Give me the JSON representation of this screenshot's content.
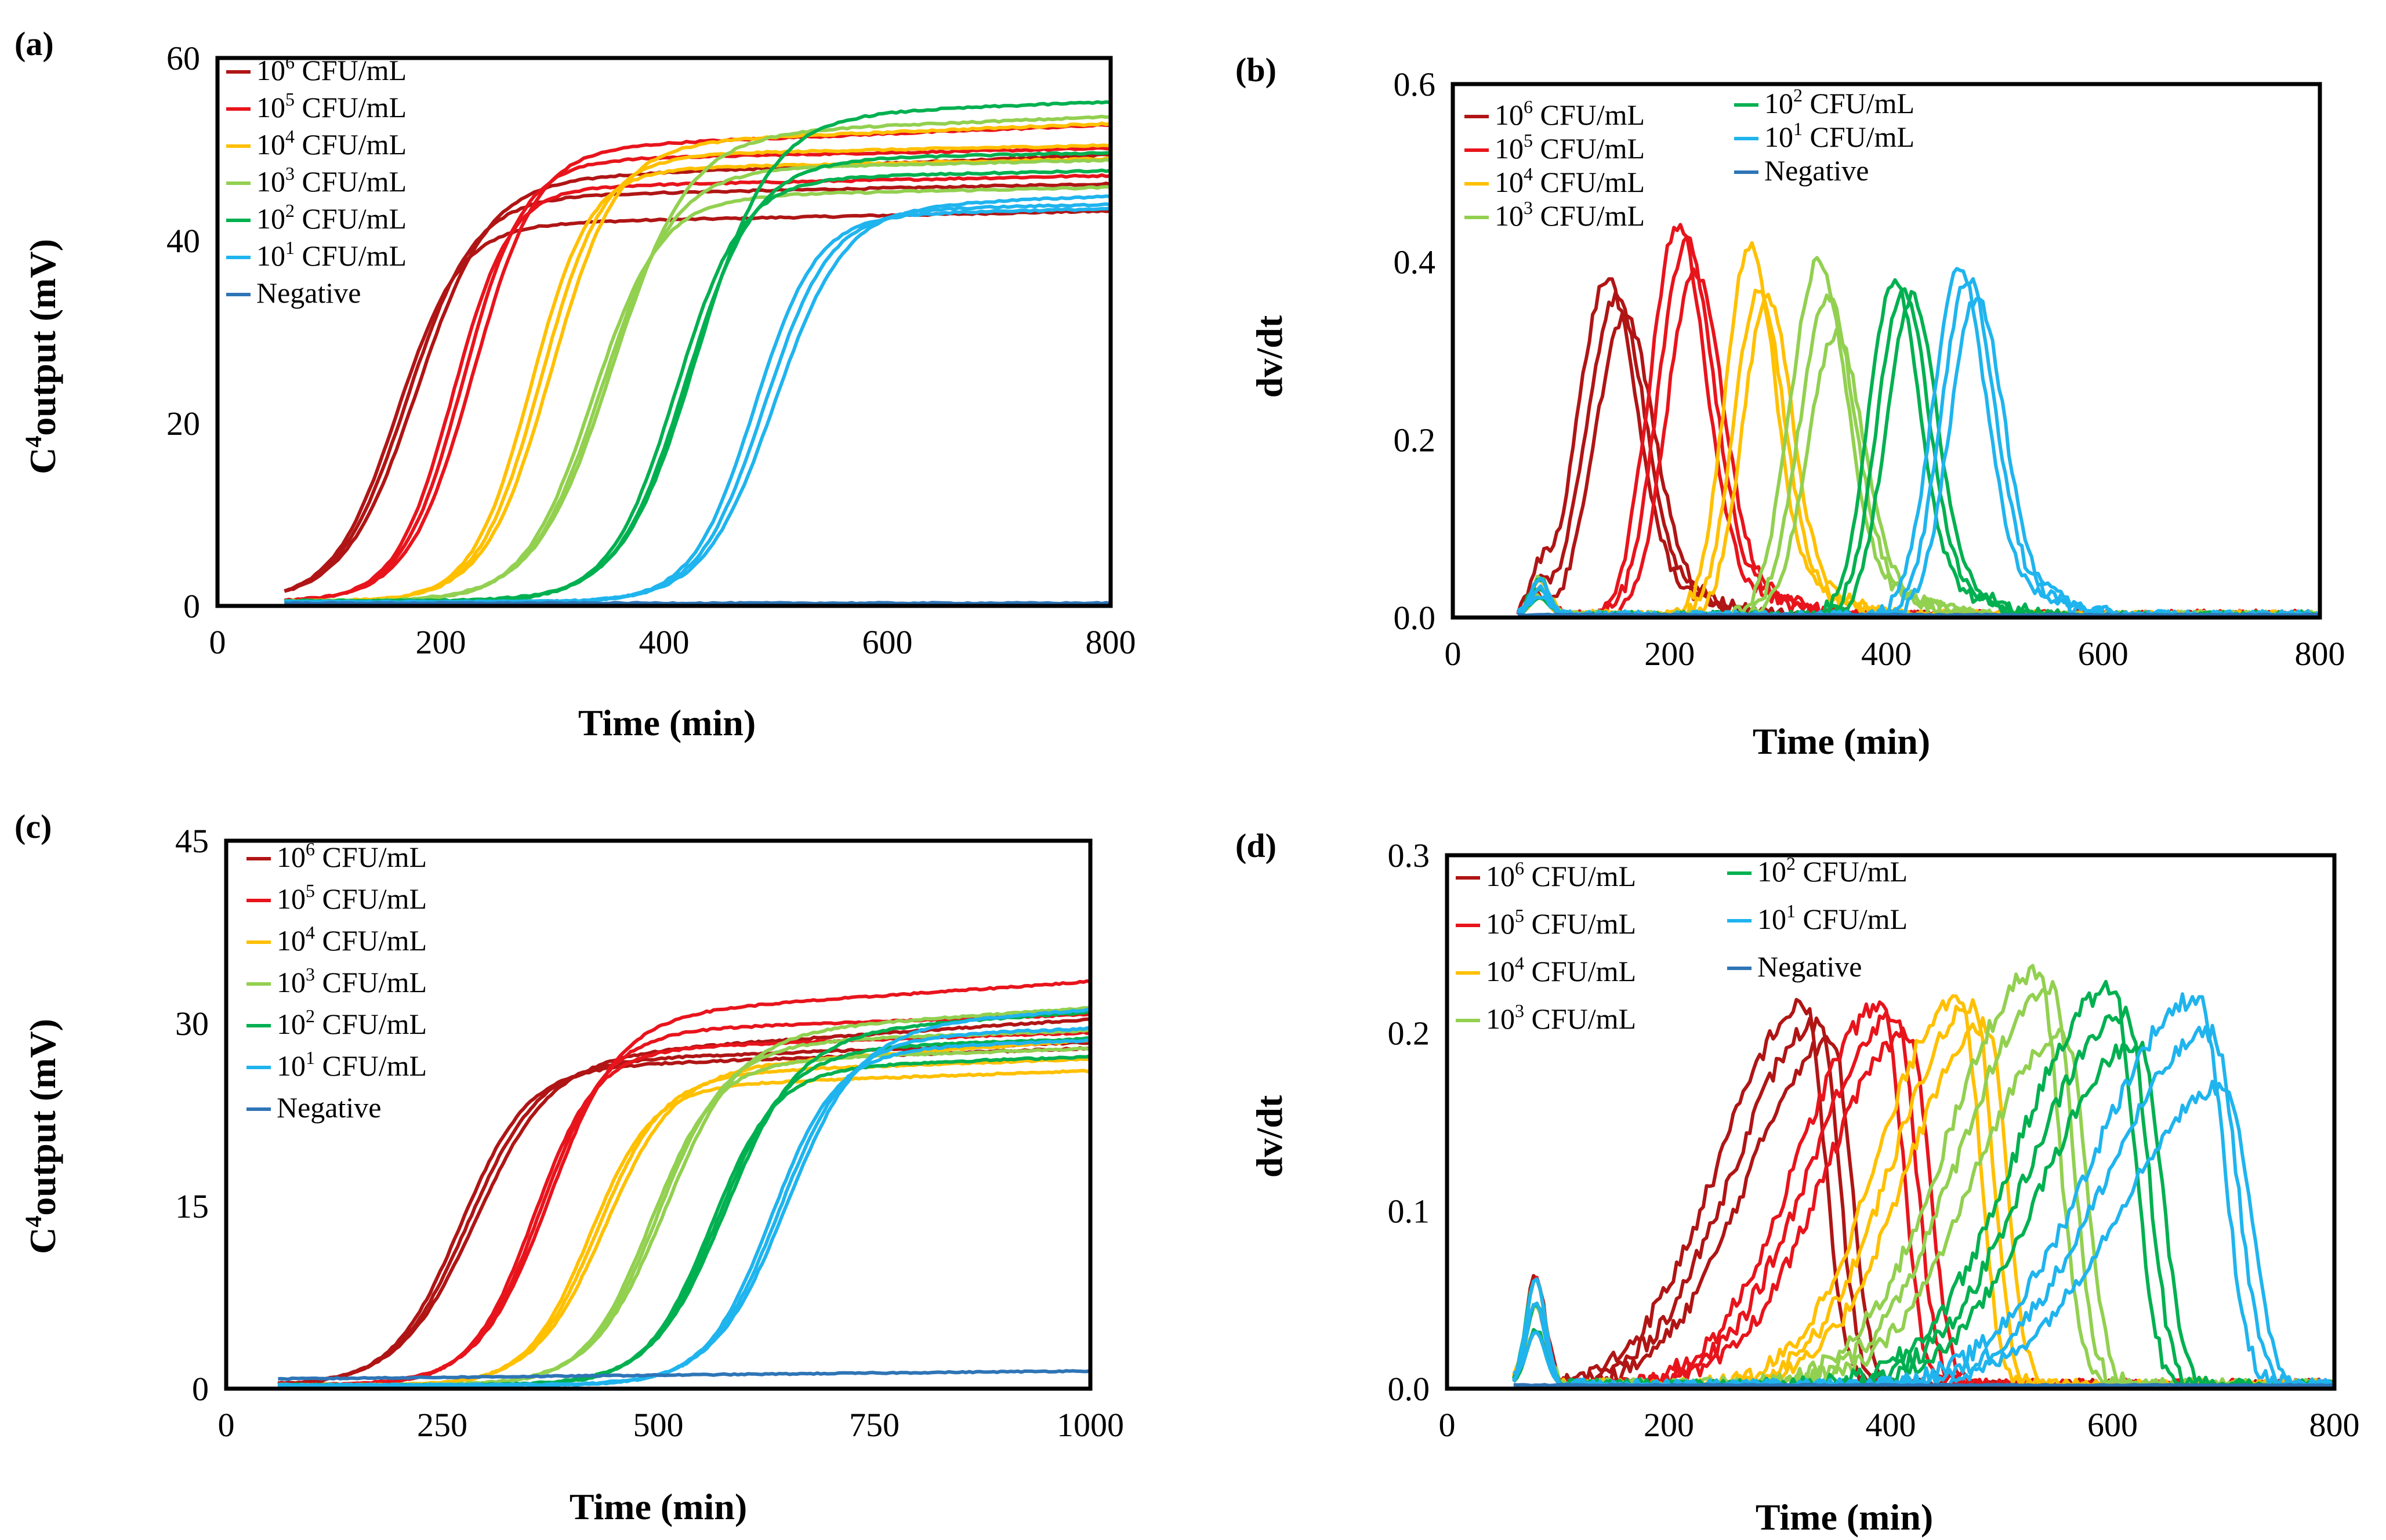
{
  "figure": {
    "legend_entries": [
      {
        "base": "10",
        "exp": "6",
        "unit": " CFU/mL"
      },
      {
        "base": "10",
        "exp": "5",
        "unit": " CFU/mL"
      },
      {
        "base": "10",
        "exp": "4",
        "unit": " CFU/mL"
      },
      {
        "base": "10",
        "exp": "3",
        "unit": " CFU/mL"
      },
      {
        "base": "10",
        "exp": "2",
        "unit": " CFU/mL"
      },
      {
        "base": "10",
        "exp": "1",
        "unit": " CFU/mL"
      },
      {
        "base": "Negative",
        "exp": "",
        "unit": ""
      }
    ],
    "colors": {
      "1e6": "#b01515",
      "1e5": "#e8141c",
      "1e4": "#ffc000",
      "1e3": "#92d050",
      "1e2": "#00b050",
      "1e1": "#1fb4ee",
      "negative": "#2e75b6"
    }
  },
  "chart_data": [
    {
      "id": "a",
      "panel_label": "(a)",
      "type": "line",
      "kind": "sigmoid",
      "xlabel": "Time (min)",
      "ylabel_main": "C",
      "ylabel_sup": "4",
      "ylabel_rest": "output (mV)",
      "xlim": [
        0,
        800
      ],
      "ylim": [
        0,
        60
      ],
      "xticks": [
        "0",
        "200",
        "400",
        "600",
        "800"
      ],
      "yticks": [
        "0",
        "20",
        "40",
        "60"
      ],
      "x_start": 60,
      "series": [
        {
          "name": "10^6 CFU/mL",
          "color": "1e6",
          "mid": 170,
          "k": 0.033,
          "plateaus": [
            42,
            45,
            47
          ]
        },
        {
          "name": "10^5 CFU/mL",
          "color": "1e5",
          "mid": 220,
          "k": 0.037,
          "plateaus": [
            46,
            49,
            50.5
          ]
        },
        {
          "name": "10^4 CFU/mL",
          "color": "1e4",
          "mid": 290,
          "k": 0.036,
          "plateaus": [
            48,
            49.5,
            51
          ]
        },
        {
          "name": "10^3 CFU/mL",
          "color": "1e3",
          "mid": 345,
          "k": 0.031,
          "plateaus": [
            45,
            48,
            52
          ]
        },
        {
          "name": "10^2 CFU/mL",
          "color": "1e2",
          "mid": 420,
          "k": 0.032,
          "plateaus": [
            47,
            49,
            54
          ]
        },
        {
          "name": "10^1 CFU/mL",
          "color": "1e1",
          "mid": 490,
          "k": 0.034,
          "plateaus": [
            43,
            43.5,
            44
          ]
        },
        {
          "name": "Negative",
          "color": "negative",
          "flat": 0.3
        }
      ]
    },
    {
      "id": "b",
      "panel_label": "(b)",
      "type": "line",
      "kind": "peak",
      "xlabel": "Time (min)",
      "ylabel_main": "dv/dt",
      "xlim": [
        0,
        800
      ],
      "ylim": [
        0,
        0.6
      ],
      "xticks": [
        "0",
        "200",
        "400",
        "600",
        "800"
      ],
      "yticks": [
        "0.0",
        "0.2",
        "0.4",
        "0.6"
      ],
      "x_start": 60,
      "series": [
        {
          "name": "10^6 CFU/mL",
          "color": "1e6",
          "peak_x": 150,
          "peaks": [
            0.37,
            0.35,
            0.33
          ],
          "w": 38
        },
        {
          "name": "10^5 CFU/mL",
          "color": "1e5",
          "peak_x": 215,
          "peaks": [
            0.43,
            0.41,
            0.38
          ],
          "w": 36
        },
        {
          "name": "10^4 CFU/mL",
          "color": "1e4",
          "peak_x": 282,
          "peaks": [
            0.41,
            0.36,
            0.35
          ],
          "w": 32
        },
        {
          "name": "10^3 CFU/mL",
          "color": "1e3",
          "peak_x": 345,
          "peaks": [
            0.39,
            0.35,
            0.31
          ],
          "w": 36
        },
        {
          "name": "10^2 CFU/mL",
          "color": "1e2",
          "peak_x": 415,
          "peaks": [
            0.37,
            0.36,
            0.35
          ],
          "w": 33
        },
        {
          "name": "10^1 CFU/mL",
          "color": "1e1",
          "peak_x": 475,
          "peaks": [
            0.38,
            0.37,
            0.35
          ],
          "w": 35
        },
        {
          "name": "Negative",
          "color": "negative",
          "flat": 0.003
        }
      ]
    },
    {
      "id": "c",
      "panel_label": "(c)",
      "type": "line",
      "kind": "sigmoid",
      "xlabel": "Time (min)",
      "ylabel_main": "C",
      "ylabel_sup": "4",
      "ylabel_rest": "output (mV)",
      "xlim": [
        0,
        1000
      ],
      "ylim": [
        0,
        45
      ],
      "xticks": [
        "0",
        "250",
        "500",
        "750",
        "1000"
      ],
      "yticks": [
        "0",
        "15",
        "30",
        "45"
      ],
      "x_start": 60,
      "series": [
        {
          "name": "10^6 CFU/mL",
          "color": "1e6",
          "mid": 280,
          "k": 0.024,
          "plateaus": [
            26.5,
            27,
            27.5
          ]
        },
        {
          "name": "10^5 CFU/mL",
          "color": "1e5",
          "mid": 365,
          "k": 0.026,
          "plateaus": [
            28,
            29.5,
            31
          ]
        },
        {
          "name": "10^4 CFU/mL",
          "color": "1e4",
          "mid": 430,
          "k": 0.026,
          "plateaus": [
            25,
            26,
            26.5
          ]
        },
        {
          "name": "10^3 CFU/mL",
          "color": "1e3",
          "mid": 500,
          "k": 0.025,
          "plateaus": [
            27,
            28.5,
            29.5
          ]
        },
        {
          "name": "10^2 CFU/mL",
          "color": "1e2",
          "mid": 570,
          "k": 0.025,
          "plateaus": [
            26.5,
            28,
            29.5
          ]
        },
        {
          "name": "10^1 CFU/mL",
          "color": "1e1",
          "mid": 640,
          "k": 0.025,
          "plateaus": [
            28,
            29,
            30
          ]
        },
        {
          "name": "Negative",
          "color": "negative",
          "flat": 0.8
        }
      ]
    },
    {
      "id": "d",
      "panel_label": "(d)",
      "type": "line",
      "kind": "peak",
      "xlabel": "Time (min)",
      "ylabel_main": "dv/dt",
      "xlim": [
        0,
        800
      ],
      "ylim": [
        0,
        0.3
      ],
      "xticks": [
        "0",
        "200",
        "400",
        "600",
        "800"
      ],
      "yticks": [
        "0.0",
        "0.1",
        "0.2",
        "0.3"
      ],
      "x_start": 60,
      "series": [
        {
          "name": "10^6 CFU/mL",
          "color": "1e6",
          "peak_x": 335,
          "peaks": [
            0.215,
            0.205,
            0.195
          ],
          "w": 90
        },
        {
          "name": "10^5 CFU/mL",
          "color": "1e5",
          "peak_x": 405,
          "peaks": [
            0.215,
            0.21,
            0.2
          ],
          "w": 90
        },
        {
          "name": "10^4 CFU/mL",
          "color": "1e4",
          "peak_x": 475,
          "peaks": [
            0.222,
            0.215,
            0.205
          ],
          "w": 85
        },
        {
          "name": "10^3 CFU/mL",
          "color": "1e3",
          "peak_x": 545,
          "peaks": [
            0.235,
            0.225,
            0.2
          ],
          "w": 95
        },
        {
          "name": "10^2 CFU/mL",
          "color": "1e2",
          "peak_x": 612,
          "peaks": [
            0.225,
            0.21,
            0.195
          ],
          "w": 100
        },
        {
          "name": "10^1 CFU/mL",
          "color": "1e1",
          "peak_x": 690,
          "peaks": [
            0.22,
            0.2,
            0.17
          ],
          "w": 110
        },
        {
          "name": "Negative",
          "color": "negative",
          "flat": 0.002
        }
      ]
    }
  ]
}
